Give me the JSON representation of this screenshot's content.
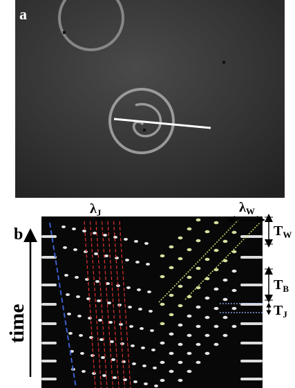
{
  "panels": {
    "a": {
      "label": "a"
    },
    "b": {
      "label": "b"
    }
  },
  "annotations": {
    "lambda_j": {
      "symbol": "λ",
      "subscript": "J"
    },
    "lambda_w": {
      "symbol": "λ",
      "subscript": "W"
    },
    "t_w": {
      "symbol": "T",
      "subscript": "W"
    },
    "t_b": {
      "symbol": "T",
      "subscript": "B"
    },
    "t_j": {
      "symbol": "T",
      "subscript": "J"
    },
    "time": "time"
  }
}
